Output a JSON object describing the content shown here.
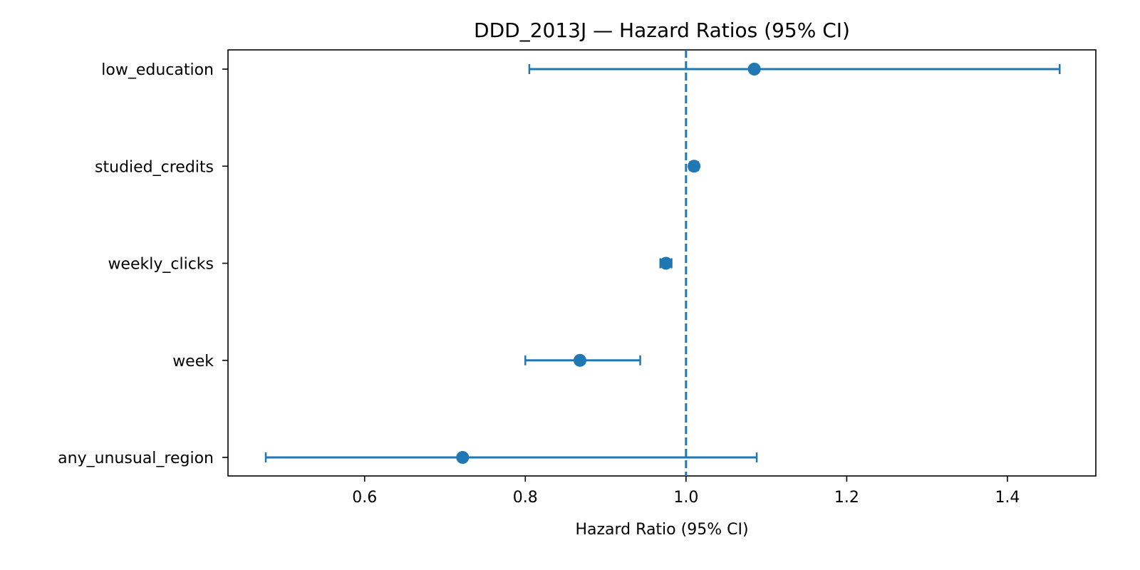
{
  "chart_data": {
    "type": "scatter",
    "subtype": "forest-plot",
    "title": "DDD_2013J — Hazard Ratios (95% CI)",
    "xlabel": "Hazard Ratio (95% CI)",
    "ylabel": "",
    "xlim": [
      0.43,
      1.51
    ],
    "xticks": [
      0.6,
      0.8,
      1.0,
      1.2,
      1.4
    ],
    "xtick_labels": [
      "0.6",
      "0.8",
      "1.0",
      "1.2",
      "1.4"
    ],
    "reference_line": {
      "x": 1.0,
      "style": "dashed"
    },
    "grid": false,
    "legend": "none",
    "color": "#1f77b4",
    "categories": [
      "low_education",
      "studied_credits",
      "weekly_clicks",
      "week",
      "any_unusual_region"
    ],
    "hr": [
      1.085,
      1.01,
      0.975,
      0.868,
      0.722
    ],
    "ci_low": [
      0.805,
      1.005,
      0.968,
      0.8,
      0.477
    ],
    "ci_high": [
      1.465,
      1.015,
      0.982,
      0.943,
      1.088
    ]
  }
}
